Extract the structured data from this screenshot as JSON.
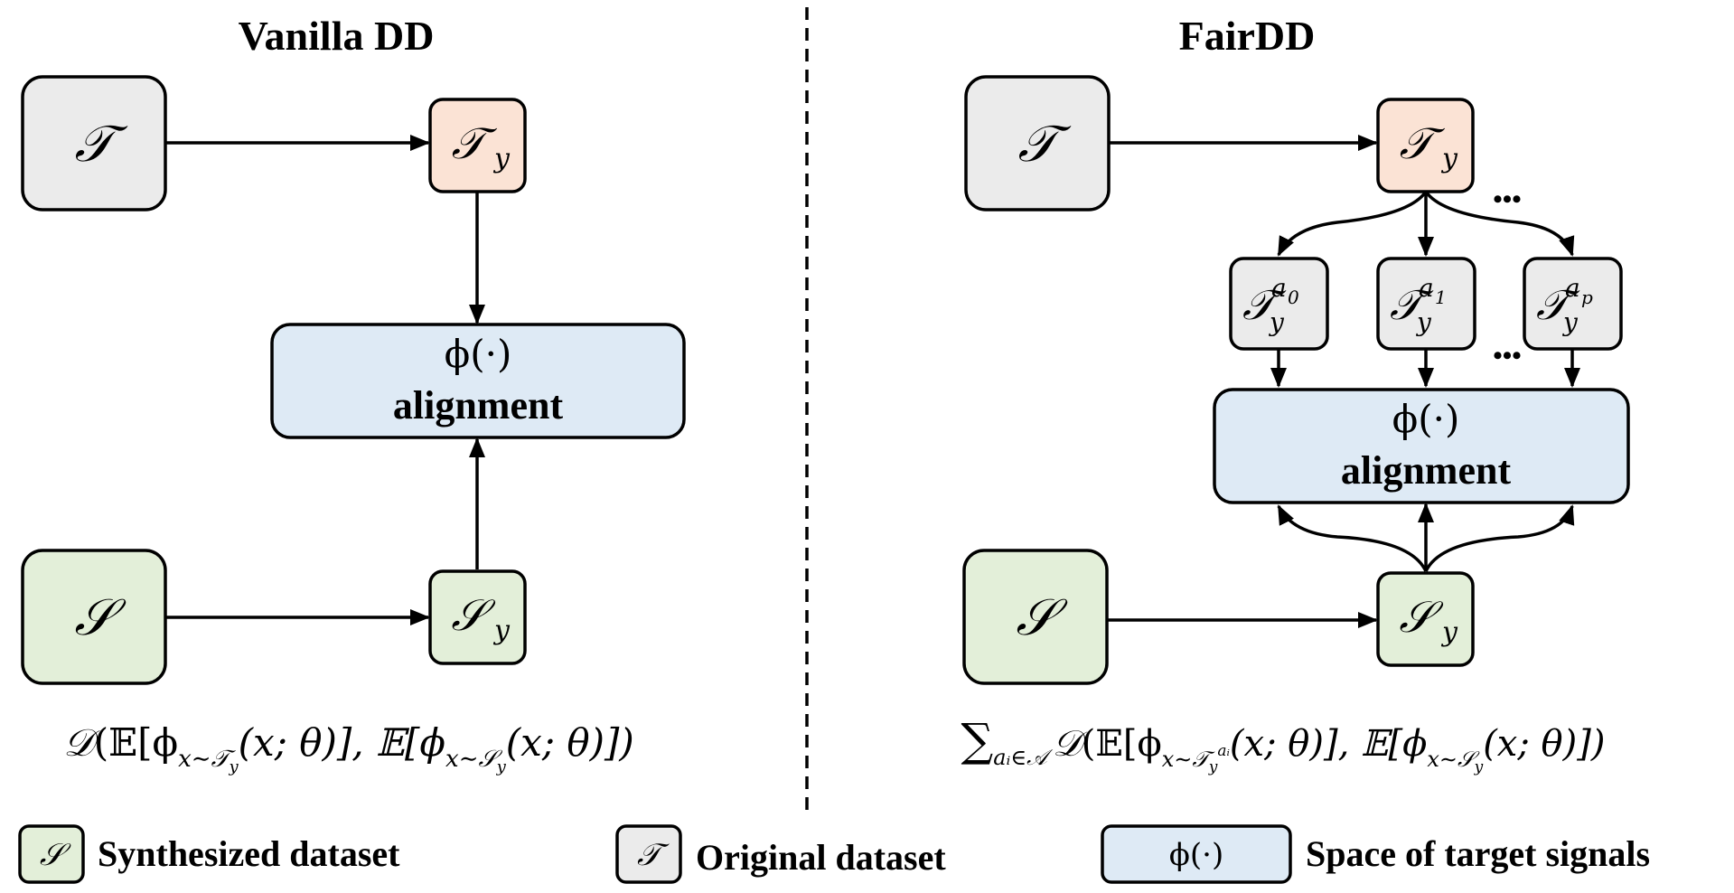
{
  "panels": {
    "vanilla": {
      "title": "Vanilla DD",
      "nodes": {
        "T": "𝒯",
        "Ty": "𝒯",
        "Ty_sub": "y",
        "phi": "ϕ(·)",
        "alignment": "alignment",
        "S": "𝒮",
        "Sy": "𝒮",
        "Sy_sub": "y"
      },
      "formula": {
        "D": "𝒟",
        "p1": "(𝔼[ϕ",
        "s1": "x∼𝒯",
        "s1y": "y",
        "p2": "(x; θ)], 𝔼[ϕ",
        "s2": "x∼𝒮",
        "s2y": "y",
        "p3": "(x; θ)])"
      }
    },
    "fair": {
      "title": "FairDD",
      "nodes": {
        "T": "𝒯",
        "Ty": "𝒯",
        "Ty_sub": "y",
        "sub_groups": [
          {
            "base": "𝒯",
            "sub": "y",
            "sup": "a",
            "sup_sub": "0"
          },
          {
            "base": "𝒯",
            "sub": "y",
            "sup": "a",
            "sup_sub": "1"
          },
          {
            "base": "𝒯",
            "sub": "y",
            "sup": "a",
            "sup_sub": "p"
          }
        ],
        "ellipsis_top": "•••",
        "ellipsis_mid": "•••",
        "phi": "ϕ(·)",
        "alignment": "alignment",
        "S": "𝒮",
        "Sy": "𝒮",
        "Sy_sub": "y"
      },
      "formula": {
        "sum": "∑",
        "sum_sub": "aᵢ∈𝒜",
        "D": "𝒟",
        "p1": "(𝔼[ϕ",
        "s1": "x∼𝒯",
        "s1y": "y",
        "s1a": "aᵢ",
        "p2": "(x; θ)], 𝔼[ϕ",
        "s2": "x∼𝒮",
        "s2y": "y",
        "p3": "(x; θ)])"
      }
    }
  },
  "legend": [
    {
      "symbol": "𝒮",
      "label": "Synthesized dataset"
    },
    {
      "symbol": "𝒯",
      "label": "Original dataset"
    },
    {
      "symbol": "ϕ(·)",
      "label": "Space of target signals"
    }
  ],
  "colors": {
    "gray_fill": "#ebebeb",
    "orange_fill": "#fbe3d5",
    "blue_fill": "#deeaf5",
    "green_fill": "#e3efd9",
    "stroke": "#000000"
  }
}
